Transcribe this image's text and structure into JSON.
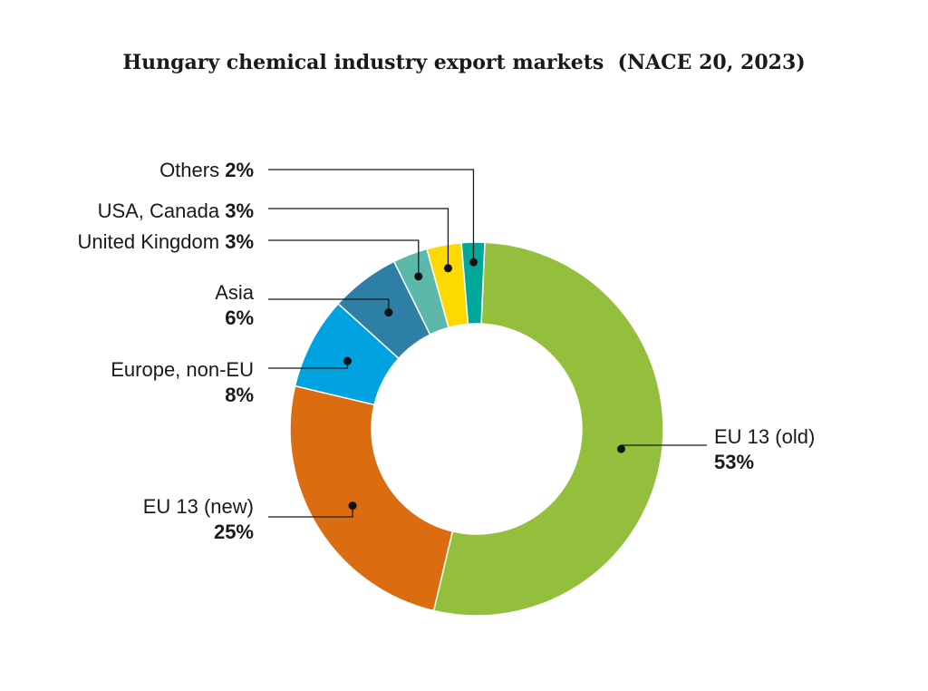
{
  "chart_data": {
    "type": "pie",
    "variant": "donut",
    "title": "Hungary chemical industry export markets  (NACE 20, 2023)",
    "unit": "%",
    "slices": [
      {
        "label": "EU 13 (old)",
        "value": 53,
        "value_label": "53%",
        "color": "#93bf3d",
        "label_layout": "two-line"
      },
      {
        "label": "EU 13 (new)",
        "value": 25,
        "value_label": "25%",
        "color": "#dc6c10",
        "label_layout": "two-line"
      },
      {
        "label": "Europe, non-EU",
        "value": 8,
        "value_label": "8%",
        "color": "#00a3e0",
        "label_layout": "two-line"
      },
      {
        "label": "Asia",
        "value": 6,
        "value_label": "6%",
        "color": "#2d7fa5",
        "label_layout": "two-line"
      },
      {
        "label": "United Kingdom",
        "value": 3,
        "value_label": "3%",
        "color": "#5cb8a8",
        "label_layout": "inline"
      },
      {
        "label": "USA, Canada",
        "value": 3,
        "value_label": "3%",
        "color": "#fcd900",
        "label_layout": "inline"
      },
      {
        "label": "Others",
        "value": 2,
        "value_label": "2%",
        "color": "#00a89a",
        "label_layout": "inline"
      }
    ]
  }
}
